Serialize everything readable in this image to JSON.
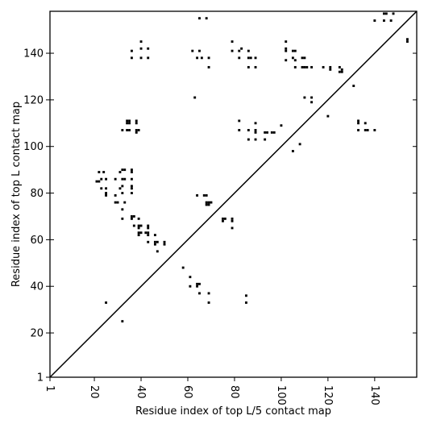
{
  "chart_data": {
    "type": "scatter",
    "title": "",
    "xlabel": "Residue index of top L/5 contact map",
    "ylabel": "Residue index of top L contact map",
    "xlim": [
      1,
      158
    ],
    "ylim": [
      1,
      158
    ],
    "x_ticks": [
      1,
      20,
      40,
      60,
      80,
      100,
      120,
      140
    ],
    "y_ticks": [
      1,
      20,
      40,
      60,
      80,
      100,
      120,
      140
    ],
    "grid": false,
    "legend": "none",
    "diagonal": [
      [
        1,
        1
      ],
      [
        158,
        158
      ]
    ],
    "point_color": "#000000",
    "points": [
      [
        65,
        155
      ],
      [
        68,
        155
      ],
      [
        62,
        141
      ],
      [
        65,
        141
      ],
      [
        36,
        141
      ],
      [
        40,
        145
      ],
      [
        40,
        142
      ],
      [
        43,
        142
      ],
      [
        36,
        138
      ],
      [
        40,
        138
      ],
      [
        43,
        138
      ],
      [
        64,
        138
      ],
      [
        66,
        138
      ],
      [
        69,
        138
      ],
      [
        69,
        134
      ],
      [
        63,
        121
      ],
      [
        79,
        145
      ],
      [
        79,
        141
      ],
      [
        82,
        141
      ],
      [
        83,
        142
      ],
      [
        86,
        141
      ],
      [
        82,
        138
      ],
      [
        86,
        138
      ],
      [
        87,
        138
      ],
      [
        89,
        138
      ],
      [
        86,
        134
      ],
      [
        89,
        134
      ],
      [
        102,
        145
      ],
      [
        102,
        142
      ],
      [
        102,
        141
      ],
      [
        102,
        137
      ],
      [
        105,
        141
      ],
      [
        106,
        141
      ],
      [
        105,
        138
      ],
      [
        106,
        137
      ],
      [
        109,
        138
      ],
      [
        110,
        138
      ],
      [
        109,
        134
      ],
      [
        110,
        134
      ],
      [
        106,
        134
      ],
      [
        111,
        134
      ],
      [
        113,
        134
      ],
      [
        118,
        134
      ],
      [
        121,
        134
      ],
      [
        121,
        133
      ],
      [
        125,
        134
      ],
      [
        125,
        132
      ],
      [
        126,
        133
      ],
      [
        126,
        132
      ],
      [
        131,
        126
      ],
      [
        110,
        121
      ],
      [
        113,
        121
      ],
      [
        113,
        119
      ],
      [
        120,
        113
      ],
      [
        144,
        157
      ],
      [
        145,
        157
      ],
      [
        148,
        157
      ],
      [
        140,
        154
      ],
      [
        144,
        154
      ],
      [
        147,
        154
      ],
      [
        154,
        146
      ],
      [
        154,
        145
      ],
      [
        34,
        111
      ],
      [
        35,
        111
      ],
      [
        34,
        110
      ],
      [
        35,
        110
      ],
      [
        38,
        111
      ],
      [
        38,
        110
      ],
      [
        32,
        107
      ],
      [
        34,
        107
      ],
      [
        35,
        107
      ],
      [
        38,
        107
      ],
      [
        38,
        106
      ],
      [
        39,
        107
      ],
      [
        82,
        111
      ],
      [
        82,
        107
      ],
      [
        86,
        107
      ],
      [
        89,
        110
      ],
      [
        89,
        107
      ],
      [
        89,
        106
      ],
      [
        93,
        106
      ],
      [
        94,
        106
      ],
      [
        96,
        106
      ],
      [
        97,
        106
      ],
      [
        86,
        103
      ],
      [
        89,
        103
      ],
      [
        93,
        103
      ],
      [
        100,
        109
      ],
      [
        108,
        101
      ],
      [
        105,
        98
      ],
      [
        133,
        111
      ],
      [
        133,
        110
      ],
      [
        136,
        110
      ],
      [
        133,
        107
      ],
      [
        136,
        107
      ],
      [
        137,
        107
      ],
      [
        140,
        107
      ],
      [
        22,
        89
      ],
      [
        24,
        89
      ],
      [
        23,
        86
      ],
      [
        25,
        86
      ],
      [
        22,
        85
      ],
      [
        21,
        85
      ],
      [
        23,
        82
      ],
      [
        25,
        82
      ],
      [
        25,
        80
      ],
      [
        25,
        79
      ],
      [
        32,
        90
      ],
      [
        33,
        90
      ],
      [
        36,
        90
      ],
      [
        36,
        89
      ],
      [
        31,
        89
      ],
      [
        29,
        86
      ],
      [
        32,
        86
      ],
      [
        33,
        86
      ],
      [
        36,
        86
      ],
      [
        32,
        83
      ],
      [
        36,
        83
      ],
      [
        36,
        82
      ],
      [
        31,
        82
      ],
      [
        32,
        80
      ],
      [
        36,
        80
      ],
      [
        29,
        79
      ],
      [
        29,
        76
      ],
      [
        30,
        76
      ],
      [
        33,
        76
      ],
      [
        32,
        73
      ],
      [
        32,
        69
      ],
      [
        36,
        70
      ],
      [
        37,
        70
      ],
      [
        36,
        69
      ],
      [
        39,
        69
      ],
      [
        39,
        66
      ],
      [
        40,
        66
      ],
      [
        39,
        65
      ],
      [
        37,
        66
      ],
      [
        43,
        66
      ],
      [
        43,
        65
      ],
      [
        39,
        63
      ],
      [
        40,
        63
      ],
      [
        39,
        62
      ],
      [
        42,
        63
      ],
      [
        43,
        63
      ],
      [
        43,
        62
      ],
      [
        46,
        62
      ],
      [
        43,
        59
      ],
      [
        46,
        59
      ],
      [
        47,
        59
      ],
      [
        46,
        58
      ],
      [
        50,
        59
      ],
      [
        50,
        58
      ],
      [
        47,
        55
      ],
      [
        64,
        79
      ],
      [
        67,
        79
      ],
      [
        68,
        79
      ],
      [
        68,
        76
      ],
      [
        69,
        76
      ],
      [
        70,
        76
      ],
      [
        68,
        75
      ],
      [
        69,
        75
      ],
      [
        75,
        69
      ],
      [
        76,
        69
      ],
      [
        75,
        68
      ],
      [
        79,
        69
      ],
      [
        79,
        68
      ],
      [
        79,
        65
      ],
      [
        58,
        48
      ],
      [
        61,
        44
      ],
      [
        61,
        40
      ],
      [
        64,
        41
      ],
      [
        65,
        41
      ],
      [
        64,
        40
      ],
      [
        65,
        37
      ],
      [
        69,
        37
      ],
      [
        69,
        33
      ],
      [
        85,
        36
      ],
      [
        85,
        33
      ],
      [
        25,
        33
      ],
      [
        32,
        25
      ]
    ]
  }
}
